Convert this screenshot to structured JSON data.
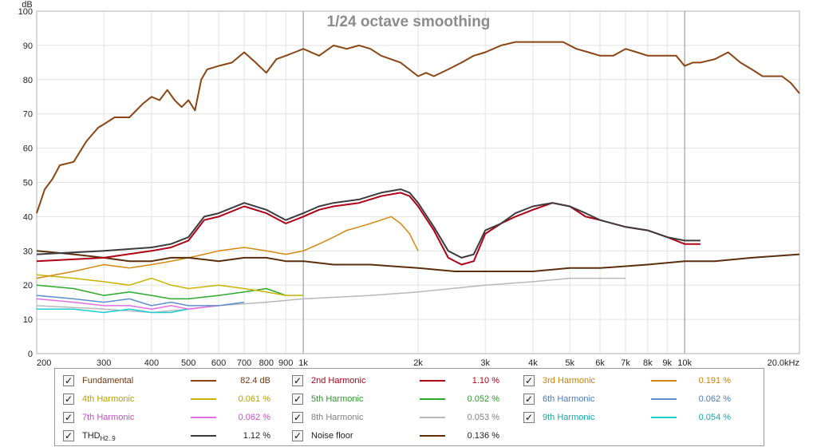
{
  "chart_data": {
    "type": "line",
    "title": "1/24 octave smoothing",
    "ylabel": "dB",
    "xlabel": "",
    "xscale": "log",
    "xlim": [
      200,
      20000
    ],
    "ylim": [
      0,
      100
    ],
    "grid": true,
    "x_ticks": [
      {
        "v": 200,
        "l": "200"
      },
      {
        "v": 300,
        "l": "300"
      },
      {
        "v": 400,
        "l": "400"
      },
      {
        "v": 500,
        "l": "500"
      },
      {
        "v": 600,
        "l": "600"
      },
      {
        "v": 700,
        "l": "700"
      },
      {
        "v": 800,
        "l": "800"
      },
      {
        "v": 900,
        "l": "900"
      },
      {
        "v": 1000,
        "l": "1k"
      },
      {
        "v": 2000,
        "l": "2k"
      },
      {
        "v": 3000,
        "l": "3k"
      },
      {
        "v": 4000,
        "l": "4k"
      },
      {
        "v": 5000,
        "l": "5k"
      },
      {
        "v": 6000,
        "l": "6k"
      },
      {
        "v": 7000,
        "l": "7k"
      },
      {
        "v": 8000,
        "l": "8k"
      },
      {
        "v": 9000,
        "l": "9k"
      },
      {
        "v": 10000,
        "l": "10k"
      },
      {
        "v": 20000,
        "l": "20.0kHz"
      }
    ],
    "y_ticks": [
      0,
      10,
      20,
      30,
      40,
      50,
      60,
      70,
      80,
      90,
      100
    ],
    "series": [
      {
        "name": "Fundamental",
        "color": "#8b4513",
        "x": [
          200,
          210,
          220,
          230,
          250,
          270,
          290,
          300,
          320,
          350,
          380,
          400,
          420,
          440,
          460,
          480,
          500,
          520,
          540,
          560,
          600,
          650,
          700,
          750,
          800,
          850,
          900,
          950,
          1000,
          1100,
          1200,
          1300,
          1400,
          1500,
          1600,
          1800,
          2000,
          2100,
          2200,
          2400,
          2600,
          2800,
          3000,
          3300,
          3600,
          4000,
          4400,
          4800,
          5200,
          5600,
          6000,
          6500,
          7000,
          7500,
          8000,
          8500,
          9000,
          9500,
          10000,
          10500,
          11000,
          12000,
          13000,
          14000,
          15000,
          16000,
          17000,
          18000,
          19000,
          20000
        ],
        "y": [
          41,
          48,
          51,
          55,
          56,
          62,
          66,
          67,
          69,
          69,
          73,
          75,
          74,
          77,
          74,
          72,
          74,
          71,
          80,
          83,
          84,
          85,
          88,
          85,
          82,
          86,
          87,
          88,
          89,
          87,
          90,
          89,
          90,
          89,
          87,
          85,
          81,
          82,
          81,
          83,
          85,
          87,
          88,
          90,
          91,
          91,
          91,
          91,
          89,
          88,
          87,
          87,
          89,
          88,
          87,
          87,
          87,
          87,
          84,
          85,
          85,
          86,
          88,
          85,
          83,
          81,
          81,
          81,
          79,
          76
        ]
      },
      {
        "name": "2nd Harmonic",
        "color": "#b00018",
        "x": [
          200,
          300,
          400,
          450,
          500,
          550,
          600,
          700,
          800,
          900,
          1000,
          1100,
          1200,
          1400,
          1600,
          1800,
          1900,
          2000,
          2200,
          2400,
          2600,
          2800,
          3000,
          3300,
          3600,
          4000,
          4500,
          5000,
          5500,
          6000,
          7000,
          8000,
          9000,
          10000,
          11000
        ],
        "y": [
          27,
          28,
          30,
          31,
          33,
          39,
          40,
          43,
          41,
          38,
          40,
          42,
          43,
          44,
          46,
          47,
          46,
          43,
          36,
          28,
          26,
          27,
          35,
          38,
          40,
          42,
          44,
          43,
          40,
          39,
          37,
          36,
          34,
          32,
          32
        ]
      },
      {
        "name": "3rd Harmonic",
        "color": "#d4880f",
        "x": [
          200,
          250,
          300,
          350,
          400,
          450,
          500,
          550,
          600,
          700,
          800,
          900,
          1000,
          1100,
          1200,
          1300,
          1400,
          1500,
          1600,
          1700,
          1800,
          1900,
          2000
        ],
        "y": [
          22,
          24,
          26,
          25,
          26,
          27,
          28,
          29,
          30,
          31,
          30,
          29,
          30,
          32,
          34,
          36,
          37,
          38,
          39,
          40,
          38,
          35,
          30
        ]
      },
      {
        "name": "4th Harmonic",
        "color": "#c8b400",
        "x": [
          200,
          250,
          300,
          350,
          400,
          450,
          500,
          600,
          700,
          800,
          900,
          1000
        ],
        "y": [
          23,
          22,
          21,
          20,
          22,
          20,
          19,
          20,
          19,
          18,
          17,
          17
        ]
      },
      {
        "name": "5th Harmonic",
        "color": "#2aaa2a",
        "x": [
          200,
          250,
          300,
          350,
          400,
          450,
          500,
          600,
          700,
          800,
          900
        ],
        "y": [
          20,
          19,
          17,
          18,
          17,
          16,
          16,
          17,
          18,
          19,
          17
        ]
      },
      {
        "name": "6th Harmonic",
        "color": "#5b8fd0",
        "x": [
          200,
          250,
          300,
          350,
          400,
          450,
          500,
          600,
          700
        ],
        "y": [
          17,
          16,
          15,
          16,
          14,
          15,
          14,
          14,
          15
        ]
      },
      {
        "name": "7th Harmonic",
        "color": "#e070e0",
        "x": [
          200,
          250,
          300,
          350,
          400,
          450,
          500,
          600
        ],
        "y": [
          16,
          15,
          14,
          14,
          13,
          14,
          13,
          14
        ]
      },
      {
        "name": "8th Harmonic",
        "color": "#b8b8b8",
        "x": [
          200,
          300,
          400,
          500,
          600,
          800,
          1000,
          1500,
          2000,
          3000,
          4000,
          5000,
          6000,
          7000
        ],
        "y": [
          14,
          13,
          12,
          13,
          14,
          15,
          16,
          17,
          18,
          20,
          21,
          22,
          22,
          22
        ]
      },
      {
        "name": "9th Harmonic",
        "color": "#18d0d0",
        "x": [
          200,
          250,
          300,
          350,
          400,
          450,
          500
        ],
        "y": [
          13,
          13,
          12,
          13,
          12,
          12,
          13
        ]
      },
      {
        "name": "THD",
        "color": "#3c3c3c",
        "x": [
          200,
          300,
          400,
          450,
          500,
          550,
          600,
          700,
          800,
          900,
          1000,
          1100,
          1200,
          1400,
          1600,
          1800,
          1900,
          2000,
          2200,
          2400,
          2600,
          2800,
          3000,
          3300,
          3600,
          4000,
          4500,
          5000,
          5500,
          6000,
          7000,
          8000,
          9000,
          10000,
          11000
        ],
        "y": [
          29,
          30,
          31,
          32,
          34,
          40,
          41,
          44,
          42,
          39,
          41,
          43,
          44,
          45,
          47,
          48,
          47,
          44,
          37,
          30,
          28,
          29,
          36,
          38,
          41,
          43,
          44,
          43,
          41,
          39,
          37,
          36,
          34,
          33,
          33
        ]
      },
      {
        "name": "Noise floor",
        "color": "#5a2e0c",
        "x": [
          200,
          250,
          300,
          350,
          400,
          450,
          500,
          600,
          700,
          800,
          900,
          1000,
          1200,
          1500,
          2000,
          2500,
          3000,
          4000,
          5000,
          6000,
          8000,
          10000,
          12000,
          15000,
          20000
        ],
        "y": [
          30,
          29,
          28,
          27,
          27,
          28,
          28,
          27,
          28,
          28,
          27,
          27,
          26,
          26,
          25,
          24,
          24,
          24,
          25,
          25,
          26,
          27,
          27,
          28,
          29
        ]
      }
    ],
    "legend": {
      "placement": "bottom",
      "items": [
        {
          "name": "Fundamental",
          "value": "82.4 dB",
          "color": "#8b4513",
          "text_color": "#6b3a12"
        },
        {
          "name": "2nd Harmonic",
          "value": "1.10 %",
          "color": "#b00018",
          "text_color": "#b00018"
        },
        {
          "name": "3rd Harmonic",
          "value": "0.191 %",
          "color": "#d4880f",
          "text_color": "#c8800a"
        },
        {
          "name": "4th Harmonic",
          "value": "0.061 %",
          "color": "#c8b400",
          "text_color": "#b8a000"
        },
        {
          "name": "5th Harmonic",
          "value": "0.052 %",
          "color": "#2aaa2a",
          "text_color": "#2a9a2a"
        },
        {
          "name": "6th Harmonic",
          "value": "0.062 %",
          "color": "#5b8fd0",
          "text_color": "#4a7ac0"
        },
        {
          "name": "7th Harmonic",
          "value": "0.062 %",
          "color": "#e070e0",
          "text_color": "#c050c0"
        },
        {
          "name": "8th Harmonic",
          "value": "0.053 %",
          "color": "#b8b8b8",
          "text_color": "#808080"
        },
        {
          "name": "9th Harmonic",
          "value": "0.054 %",
          "color": "#18d0d0",
          "text_color": "#12a8a8"
        },
        {
          "name": "THD",
          "name_sub": "H2..9",
          "value": "1.12 %",
          "color": "#3c3c3c",
          "text_color": "#222222"
        },
        {
          "name": "Noise floor",
          "value": "0.136 %",
          "color": "#5a2e0c",
          "text_color": "#222222"
        }
      ]
    }
  }
}
